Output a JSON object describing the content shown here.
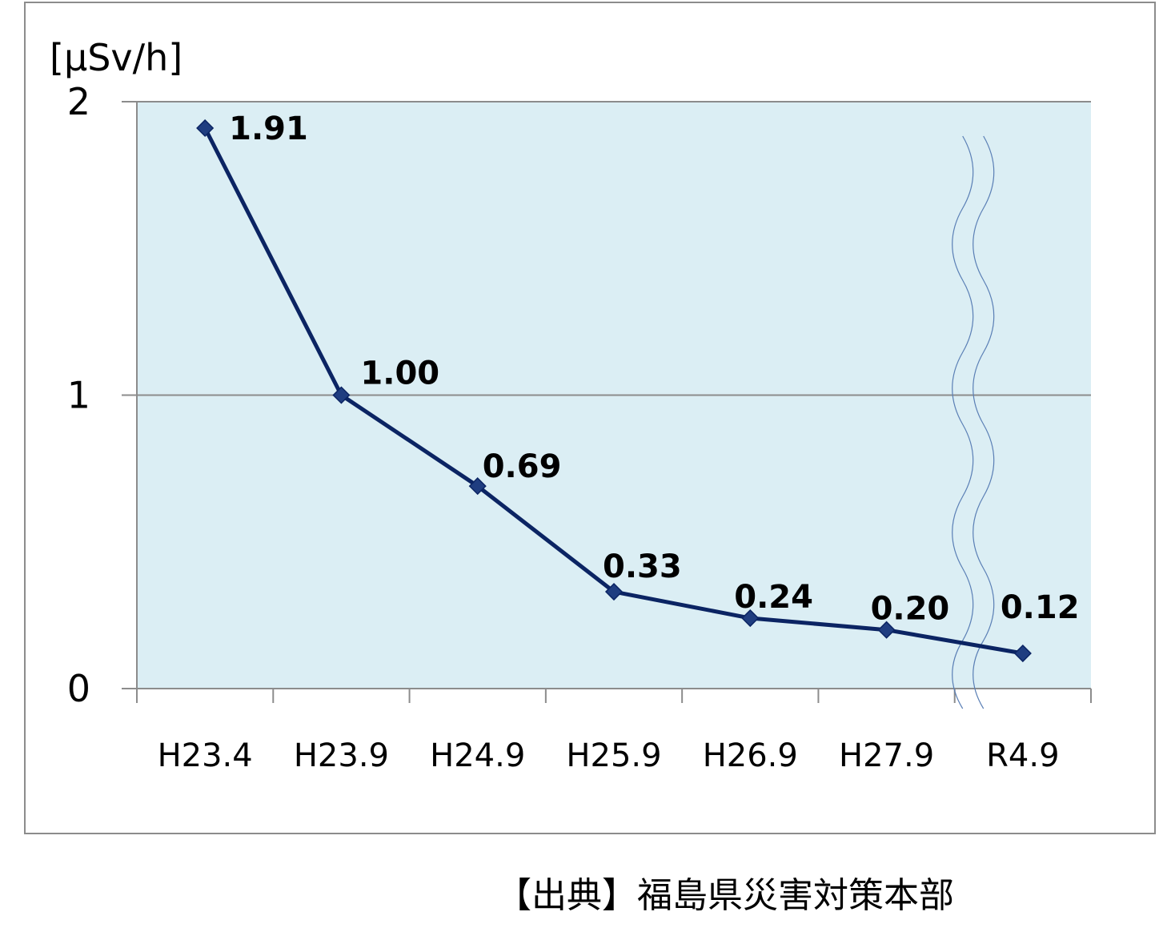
{
  "chart_data": {
    "type": "line",
    "unit_label": "[μSv/h]",
    "categories": [
      "H23.4",
      "H23.9",
      "H24.9",
      "H25.9",
      "H26.9",
      "H27.9",
      "R4.9"
    ],
    "series": [
      {
        "values": [
          1.91,
          1.0,
          0.69,
          0.33,
          0.24,
          0.2,
          0.12
        ],
        "labels": [
          "1.91",
          "1.00",
          "0.69",
          "0.33",
          "0.24",
          "0.20",
          "0.12"
        ]
      }
    ],
    "y_ticks": [
      "0",
      "1",
      "2"
    ],
    "ylim": [
      0,
      2
    ],
    "grid": true,
    "axis_break": "between H27.9 and R4.9",
    "colors": {
      "plot_background": "#dbeef4",
      "series_line": "#0b2463",
      "gridline": "#8c8c8c"
    }
  },
  "source_note": "【出典】福島県災害対策本部"
}
